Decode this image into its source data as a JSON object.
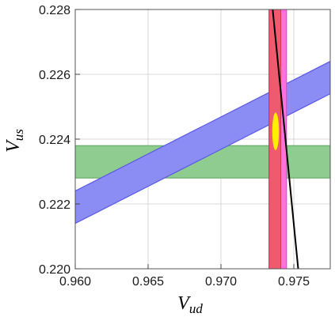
{
  "chart_data": {
    "type": "area",
    "xlabel": {
      "main": "V",
      "sub": "ud"
    },
    "ylabel": {
      "main": "V",
      "sub": "us"
    },
    "xlim": [
      0.96,
      0.9775
    ],
    "ylim": [
      0.22,
      0.228
    ],
    "xticks": [
      "0.960",
      "0.965",
      "0.970",
      "0.975"
    ],
    "xtick_values": [
      0.96,
      0.965,
      0.97,
      0.975
    ],
    "yticks": [
      "0.220",
      "0.222",
      "0.224",
      "0.226",
      "0.228"
    ],
    "ytick_values": [
      0.22,
      0.222,
      0.224,
      0.226,
      0.228
    ],
    "grid": true,
    "legend": false,
    "bands": [
      {
        "kind": "horizontal",
        "ymin": 0.2228,
        "ymax": 0.2238,
        "fill": "#8fcc8f",
        "stroke": "#5aa65a"
      },
      {
        "kind": "diagonal",
        "lower": [
          [
            0.96,
            0.2214
          ],
          [
            0.9775,
            0.2254
          ]
        ],
        "upper": [
          [
            0.96,
            0.2224
          ],
          [
            0.9775,
            0.2264
          ]
        ],
        "fill": "#8c8cf5",
        "stroke": "#5a5ae6"
      },
      {
        "kind": "vertical",
        "xmin": 0.9733,
        "xmax": 0.9745,
        "fill": "#ff6fe0",
        "stroke": "#e040c8"
      },
      {
        "kind": "vertical",
        "xmin": 0.9733,
        "xmax": 0.9741,
        "fill": "#f05a6e",
        "stroke": "#d03050"
      }
    ],
    "line": {
      "points": [
        [
          0.97355,
          0.228
        ],
        [
          0.9753,
          0.22
        ]
      ],
      "color": "#000000"
    },
    "ellipse": {
      "cx": 0.97375,
      "cy": 0.22424,
      "rx": 0.00023,
      "ry": 0.00058,
      "color": "#ffee00"
    }
  }
}
